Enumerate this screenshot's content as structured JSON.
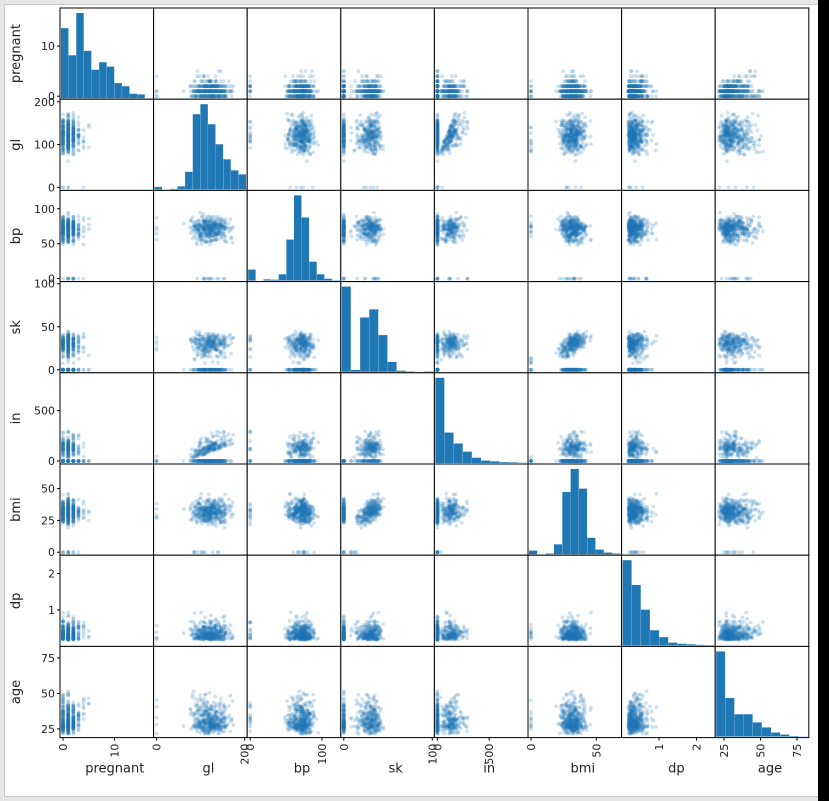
{
  "chart_data": {
    "type": "scatter",
    "kind": "scatter-matrix",
    "variables": [
      "pregnant",
      "gl",
      "bp",
      "sk",
      "in",
      "bmi",
      "dp",
      "age"
    ],
    "ranges": {
      "pregnant": [
        0,
        17
      ],
      "gl": [
        0,
        199
      ],
      "bp": [
        0,
        122
      ],
      "sk": [
        0,
        99
      ],
      "in": [
        0,
        846
      ],
      "bmi": [
        0,
        67
      ],
      "dp": [
        0.08,
        2.42
      ],
      "age": [
        21,
        81
      ]
    },
    "y_ticks": {
      "pregnant": [
        "0",
        "10"
      ],
      "gl": [
        "0",
        "100",
        "200"
      ],
      "bp": [
        "0",
        "50",
        "100"
      ],
      "sk": [
        "0",
        "50",
        "100"
      ],
      "in": [
        "0",
        "500"
      ],
      "bmi": [
        "0",
        "25",
        "50"
      ],
      "dp": [
        "1",
        "2"
      ],
      "age": [
        "25",
        "50",
        "75"
      ]
    },
    "x_ticks": {
      "pregnant": [
        "0",
        "10"
      ],
      "gl": [
        "0",
        "200"
      ],
      "bp": [
        "0",
        "100"
      ],
      "sk": [
        "0",
        "100"
      ],
      "in": [
        "0",
        "500"
      ],
      "bmi": [
        "0",
        "50"
      ],
      "dp": [
        "1",
        "2"
      ],
      "age": [
        "25",
        "50",
        "75"
      ]
    },
    "histograms": {
      "pregnant": [
        111,
        68,
        135,
        75,
        45,
        57,
        50,
        24,
        19,
        7,
        6,
        0
      ],
      "gl": [
        5,
        0,
        1,
        6,
        35,
        150,
        170,
        130,
        90,
        60,
        38,
        30
      ],
      "bp": [
        35,
        0,
        4,
        3,
        20,
        130,
        270,
        200,
        60,
        20,
        6,
        1
      ],
      "sk": [
        232,
        5,
        148,
        170,
        100,
        27,
        3,
        1,
        0,
        1
      ],
      "in": [
        420,
        150,
        96,
        56,
        26,
        12,
        8,
        4,
        3,
        1
      ],
      "bmi": [
        11,
        0,
        2,
        30,
        190,
        260,
        200,
        50,
        14,
        5,
        2
      ],
      "dp": [
        310,
        220,
        130,
        55,
        30,
        10,
        6,
        4,
        2,
        1
      ],
      "age": [
        420,
        190,
        110,
        110,
        70,
        45,
        20,
        10,
        3,
        1
      ]
    },
    "point_color": "#1f77b4",
    "bar_color": "#1f77b4",
    "grid": false,
    "legend": "none"
  }
}
